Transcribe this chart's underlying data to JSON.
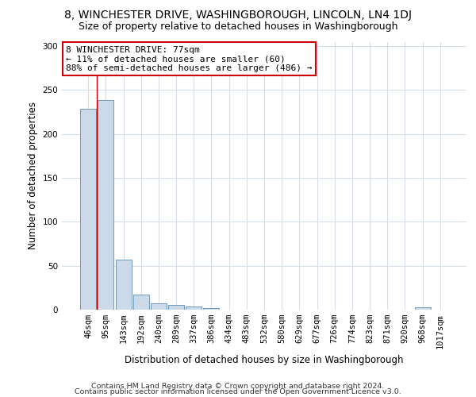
{
  "title1": "8, WINCHESTER DRIVE, WASHINGBOROUGH, LINCOLN, LN4 1DJ",
  "title2": "Size of property relative to detached houses in Washingborough",
  "xlabel": "Distribution of detached houses by size in Washingborough",
  "ylabel": "Number of detached properties",
  "bar_color": "#ccd9e8",
  "bar_edge_color": "#7099bb",
  "categories": [
    "46sqm",
    "95sqm",
    "143sqm",
    "192sqm",
    "240sqm",
    "289sqm",
    "337sqm",
    "386sqm",
    "434sqm",
    "483sqm",
    "532sqm",
    "580sqm",
    "629sqm",
    "677sqm",
    "726sqm",
    "774sqm",
    "823sqm",
    "871sqm",
    "920sqm",
    "968sqm",
    "1017sqm"
  ],
  "values": [
    229,
    239,
    57,
    17,
    7,
    5,
    4,
    2,
    0,
    0,
    0,
    0,
    0,
    0,
    0,
    0,
    0,
    0,
    0,
    3,
    0
  ],
  "property_line_x": 0.5,
  "annotation_line1": "8 WINCHESTER DRIVE: 77sqm",
  "annotation_line2": "← 11% of detached houses are smaller (60)",
  "annotation_line3": "88% of semi-detached houses are larger (486) →",
  "annotation_box_color": "#ffffff",
  "annotation_box_edge": "#cc0000",
  "ylim": [
    0,
    305
  ],
  "yticks": [
    0,
    50,
    100,
    150,
    200,
    250,
    300
  ],
  "grid_color": "#d5dde8",
  "footer1": "Contains HM Land Registry data © Crown copyright and database right 2024.",
  "footer2": "Contains public sector information licensed under the Open Government Licence v3.0.",
  "title1_fontsize": 10,
  "title2_fontsize": 9,
  "tick_fontsize": 7.5,
  "label_fontsize": 8.5,
  "footer_fontsize": 6.8,
  "annot_fontsize": 8
}
